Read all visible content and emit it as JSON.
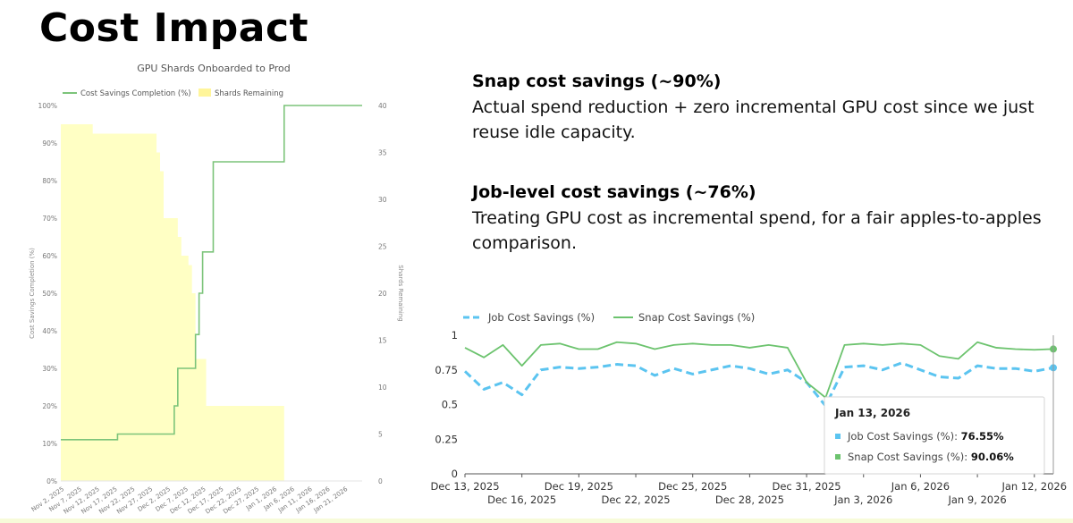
{
  "page": {
    "title": "Cost Impact"
  },
  "blocks": [
    {
      "heading": "Snap cost savings (~90%)",
      "body": "Actual spend reduction + zero incremental GPU cost since we just reuse idle capacity."
    },
    {
      "heading": "Job-level cost savings (~76%)",
      "body": "Treating GPU cost as incremental spend, for a fair apples-to-apples comparison."
    }
  ],
  "chart_data": [
    {
      "type": "line",
      "title": "GPU Shards Onboarded to Prod",
      "ylabel": "Cost Savings Completion (%)",
      "y2label": "Shards Remaining",
      "ylim": [
        0,
        100
      ],
      "y2lim": [
        0,
        40
      ],
      "yticks": [
        "0%",
        "10%",
        "20%",
        "30%",
        "40%",
        "50%",
        "60%",
        "70%",
        "80%",
        "90%",
        "100%"
      ],
      "y2ticks": [
        "0",
        "5",
        "10",
        "15",
        "20",
        "25",
        "30",
        "35",
        "40"
      ],
      "xlim": [
        "2025-11-02",
        "2026-01-26"
      ],
      "xticks": [
        "Nov 2, 2025",
        "Nov 7, 2025",
        "Nov 12, 2025",
        "Nov 17, 2025",
        "Nov 22, 2025",
        "Nov 27, 2025",
        "Dec 2, 2025",
        "Dec 7, 2025",
        "Dec 12, 2025",
        "Dec 17, 2025",
        "Dec 22, 2025",
        "Dec 27, 2025",
        "Jan 1, 2026",
        "Jan 6, 2026",
        "Jan 11, 2026",
        "Jan 16, 2026",
        "Jan 21, 2026"
      ],
      "legend": {
        "position": "top-left",
        "items": [
          {
            "name": "Cost Savings Completion (%)",
            "color": "#7cc47a",
            "kind": "line"
          },
          {
            "name": "Shards Remaining",
            "color": "#ffffc4",
            "kind": "area"
          }
        ]
      },
      "series": [
        {
          "name": "Cost Savings Completion (%)",
          "axis": "left",
          "color": "#7cc47a",
          "step": true,
          "points": [
            [
              "2025-11-02",
              11
            ],
            [
              "2025-11-18",
              11
            ],
            [
              "2025-11-18",
              12.5
            ],
            [
              "2025-12-04",
              12.5
            ],
            [
              "2025-12-04",
              20
            ],
            [
              "2025-12-05",
              20
            ],
            [
              "2025-12-05",
              30
            ],
            [
              "2025-12-10",
              30
            ],
            [
              "2025-12-10",
              39
            ],
            [
              "2025-12-11",
              39
            ],
            [
              "2025-12-11",
              50
            ],
            [
              "2025-12-12",
              50
            ],
            [
              "2025-12-12",
              61
            ],
            [
              "2025-12-15",
              61
            ],
            [
              "2025-12-15",
              85
            ],
            [
              "2026-01-04",
              85
            ],
            [
              "2026-01-04",
              100
            ],
            [
              "2026-01-26",
              100
            ]
          ]
        },
        {
          "name": "Shards Remaining",
          "axis": "right",
          "color": "#ffffc4",
          "type": "area",
          "step": true,
          "points": [
            [
              "2025-11-02",
              38
            ],
            [
              "2025-11-11",
              38
            ],
            [
              "2025-11-11",
              37
            ],
            [
              "2025-11-29",
              37
            ],
            [
              "2025-11-29",
              35
            ],
            [
              "2025-11-30",
              35
            ],
            [
              "2025-11-30",
              33
            ],
            [
              "2025-12-01",
              33
            ],
            [
              "2025-12-01",
              28
            ],
            [
              "2025-12-05",
              28
            ],
            [
              "2025-12-05",
              26
            ],
            [
              "2025-12-06",
              26
            ],
            [
              "2025-12-06",
              24
            ],
            [
              "2025-12-08",
              24
            ],
            [
              "2025-12-08",
              23
            ],
            [
              "2025-12-09",
              23
            ],
            [
              "2025-12-09",
              20
            ],
            [
              "2025-12-10",
              20
            ],
            [
              "2025-12-10",
              13
            ],
            [
              "2025-12-13",
              13
            ],
            [
              "2025-12-13",
              8
            ],
            [
              "2026-01-04",
              8
            ],
            [
              "2026-01-04",
              0
            ]
          ]
        }
      ]
    },
    {
      "type": "line",
      "title": "",
      "ylim": [
        0,
        1
      ],
      "yticks": [
        "0",
        "0.25",
        "0.5",
        "0.75",
        "1"
      ],
      "xlim": [
        "2025-12-13",
        "2026-01-13"
      ],
      "xticks": [
        {
          "date": "2025-12-13",
          "label": "Dec 13, 2025",
          "row": 0
        },
        {
          "date": "2025-12-16",
          "label": "Dec 16, 2025",
          "row": 1
        },
        {
          "date": "2025-12-19",
          "label": "Dec 19, 2025",
          "row": 0
        },
        {
          "date": "2025-12-22",
          "label": "Dec 22, 2025",
          "row": 1
        },
        {
          "date": "2025-12-25",
          "label": "Dec 25, 2025",
          "row": 0
        },
        {
          "date": "2025-12-28",
          "label": "Dec 28, 2025",
          "row": 1
        },
        {
          "date": "2025-12-31",
          "label": "Dec 31, 2025",
          "row": 0
        },
        {
          "date": "2026-01-03",
          "label": "Jan 3, 2026",
          "row": 1
        },
        {
          "date": "2026-01-06",
          "label": "Jan 6, 2026",
          "row": 0
        },
        {
          "date": "2026-01-09",
          "label": "Jan 9, 2026",
          "row": 1
        },
        {
          "date": "2026-01-12",
          "label": "Jan 12, 2026",
          "row": 0
        }
      ],
      "legend": {
        "position": "top-left",
        "items": [
          {
            "name": "Job Cost Savings (%)",
            "color": "#5bc4f0",
            "dash": true
          },
          {
            "name": "Snap Cost Savings (%)",
            "color": "#6cc36e",
            "dash": false
          }
        ]
      },
      "x": [
        "2025-12-13",
        "2025-12-14",
        "2025-12-15",
        "2025-12-16",
        "2025-12-17",
        "2025-12-18",
        "2025-12-19",
        "2025-12-20",
        "2025-12-21",
        "2025-12-22",
        "2025-12-23",
        "2025-12-24",
        "2025-12-25",
        "2025-12-26",
        "2025-12-27",
        "2025-12-28",
        "2025-12-29",
        "2025-12-30",
        "2025-12-31",
        "2026-01-01",
        "2026-01-02",
        "2026-01-03",
        "2026-01-04",
        "2026-01-05",
        "2026-01-06",
        "2026-01-07",
        "2026-01-08",
        "2026-01-09",
        "2026-01-10",
        "2026-01-11",
        "2026-01-12",
        "2026-01-13"
      ],
      "series": [
        {
          "name": "Job Cost Savings (%)",
          "color": "#5bc4f0",
          "dash": true,
          "values": [
            0.74,
            0.61,
            0.66,
            0.57,
            0.75,
            0.77,
            0.76,
            0.77,
            0.79,
            0.78,
            0.71,
            0.76,
            0.72,
            0.75,
            0.78,
            0.76,
            0.72,
            0.75,
            0.66,
            0.49,
            0.77,
            0.78,
            0.75,
            0.8,
            0.75,
            0.7,
            0.69,
            0.78,
            0.76,
            0.76,
            0.74,
            0.7655
          ]
        },
        {
          "name": "Snap Cost Savings (%)",
          "color": "#6cc36e",
          "dash": false,
          "values": [
            0.91,
            0.84,
            0.93,
            0.78,
            0.93,
            0.94,
            0.9,
            0.9,
            0.95,
            0.94,
            0.9,
            0.93,
            0.94,
            0.93,
            0.93,
            0.91,
            0.93,
            0.91,
            0.66,
            0.55,
            0.93,
            0.94,
            0.93,
            0.94,
            0.93,
            0.85,
            0.83,
            0.95,
            0.91,
            0.9,
            0.895,
            0.9006
          ]
        }
      ],
      "tooltip": {
        "date": "Jan 13, 2026",
        "rows": [
          {
            "label": "Job Cost Savings (%):",
            "value": "76.55%",
            "color": "#5bc4f0"
          },
          {
            "label": "Snap Cost Savings (%):",
            "value": "90.06%",
            "color": "#6cc36e"
          }
        ]
      }
    }
  ]
}
